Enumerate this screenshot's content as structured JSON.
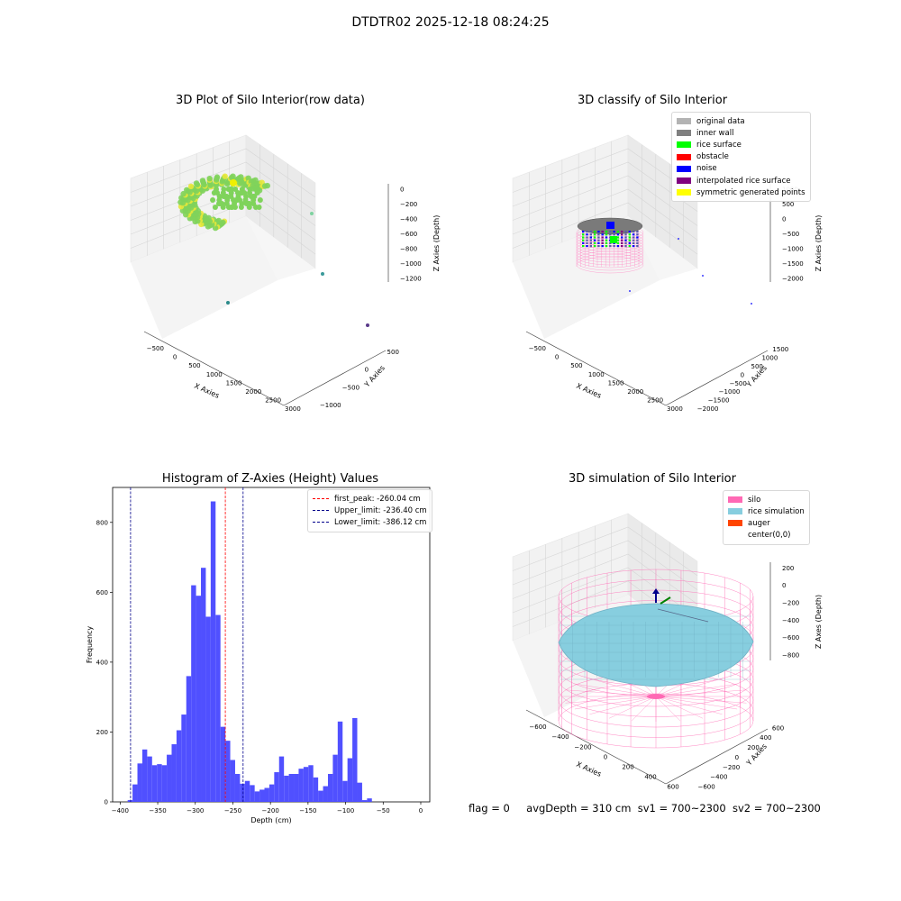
{
  "suptitle": "DTDTR02 2025-12-18 08:24:25",
  "footer": {
    "flag": "flag = 0",
    "avg": "avgDepth = 310 cm",
    "sv1": "sv1 = 700~2300",
    "sv2": "sv2 = 700~2300"
  },
  "colors": {
    "hist": "#4d4dff",
    "silo": "#ff69b4",
    "rice": "#87cedf",
    "auger": "#ff4500",
    "surface_green": "#7fd35b",
    "surface_yellow": "#e8e838"
  },
  "chart_data": [
    {
      "type": "scatter",
      "title": "3D Plot of Silo Interior(row data)",
      "xlabel": "X Axies",
      "ylabel": "Y Axies",
      "zlabel": "Z Axies (Depth)",
      "xticks": [
        "−500",
        "0",
        "500",
        "1000",
        "1500",
        "2000",
        "2500",
        "3000"
      ],
      "yticks": [
        "500",
        "0",
        "−500",
        "−1000"
      ],
      "zticks": [
        "0",
        "−200",
        "−400",
        "−600",
        "−800",
        "−1000",
        "−1200"
      ]
    },
    {
      "type": "scatter",
      "title": "3D classify of Silo Interior",
      "xlabel": "X Axies",
      "ylabel": "Y Axies",
      "zlabel": "Z Axies (Depth)",
      "xticks": [
        "−500",
        "0",
        "500",
        "1000",
        "1500",
        "2000",
        "2500",
        "3000"
      ],
      "yticks": [
        "1500",
        "1000",
        "500",
        "0",
        "−500",
        "−1000",
        "−1500",
        "−2000"
      ],
      "zticks": [
        "1000",
        "500",
        "0",
        "−500",
        "−1000",
        "−1500",
        "−2000"
      ],
      "legend": [
        {
          "name": "original data",
          "color": "#b3b3b3"
        },
        {
          "name": "inner wall",
          "color": "#808080"
        },
        {
          "name": "rice surface",
          "color": "#00ff00"
        },
        {
          "name": "obstacle",
          "color": "#ff0000"
        },
        {
          "name": "noise",
          "color": "#0000ff"
        },
        {
          "name": "interpolated rice surface",
          "color": "#800080"
        },
        {
          "name": "symmetric generated points",
          "color": "#ffff00"
        }
      ]
    },
    {
      "type": "bar",
      "title": "Histogram of Z-Axies (Height) Values",
      "xlabel": "Depth (cm)",
      "ylabel": "Frequency",
      "xlim": [
        -410,
        12
      ],
      "ylim": [
        0,
        900
      ],
      "xticks": [
        -400,
        -350,
        -300,
        -250,
        -200,
        -150,
        -100,
        -50,
        0
      ],
      "yticks": [
        0,
        200,
        400,
        600,
        800
      ],
      "bin_start": -390,
      "bin_width": 6.5,
      "values": [
        5,
        50,
        110,
        150,
        130,
        105,
        108,
        105,
        135,
        165,
        205,
        250,
        360,
        620,
        590,
        670,
        530,
        860,
        535,
        215,
        175,
        120,
        80,
        52,
        60,
        48,
        30,
        35,
        40,
        50,
        85,
        130,
        75,
        80,
        80,
        95,
        100,
        105,
        70,
        32,
        45,
        80,
        135,
        230,
        60,
        125,
        240,
        55,
        5,
        10
      ],
      "vlines": [
        {
          "name": "first_peak: -260.04 cm",
          "x": -260.04,
          "color": "#ff0000"
        },
        {
          "name": "Upper_limit: -236.40 cm",
          "x": -236.4,
          "color": "#00008b"
        },
        {
          "name": "Lower_limit: -386.12 cm",
          "x": -386.12,
          "color": "#00008b"
        }
      ]
    },
    {
      "type": "scatter",
      "title": "3D simulation of Silo Interior",
      "xlabel": "X Axies",
      "ylabel": "Y Axies",
      "zlabel": "Z Axes (Depth)",
      "xticks": [
        "−600",
        "−400",
        "−200",
        "0",
        "200",
        "400",
        "600"
      ],
      "yticks": [
        "600",
        "400",
        "200",
        "0",
        "−200",
        "−400",
        "−600"
      ],
      "zticks": [
        "200",
        "0",
        "−200",
        "−400",
        "−600",
        "−800"
      ],
      "legend": [
        {
          "name": "silo",
          "color": "#ff69b4"
        },
        {
          "name": "rice simulation",
          "color": "#87cedf"
        },
        {
          "name": "auger",
          "color": "#ff4500"
        },
        {
          "name": "center(0,0)",
          "color": "#ffffff"
        }
      ]
    }
  ]
}
